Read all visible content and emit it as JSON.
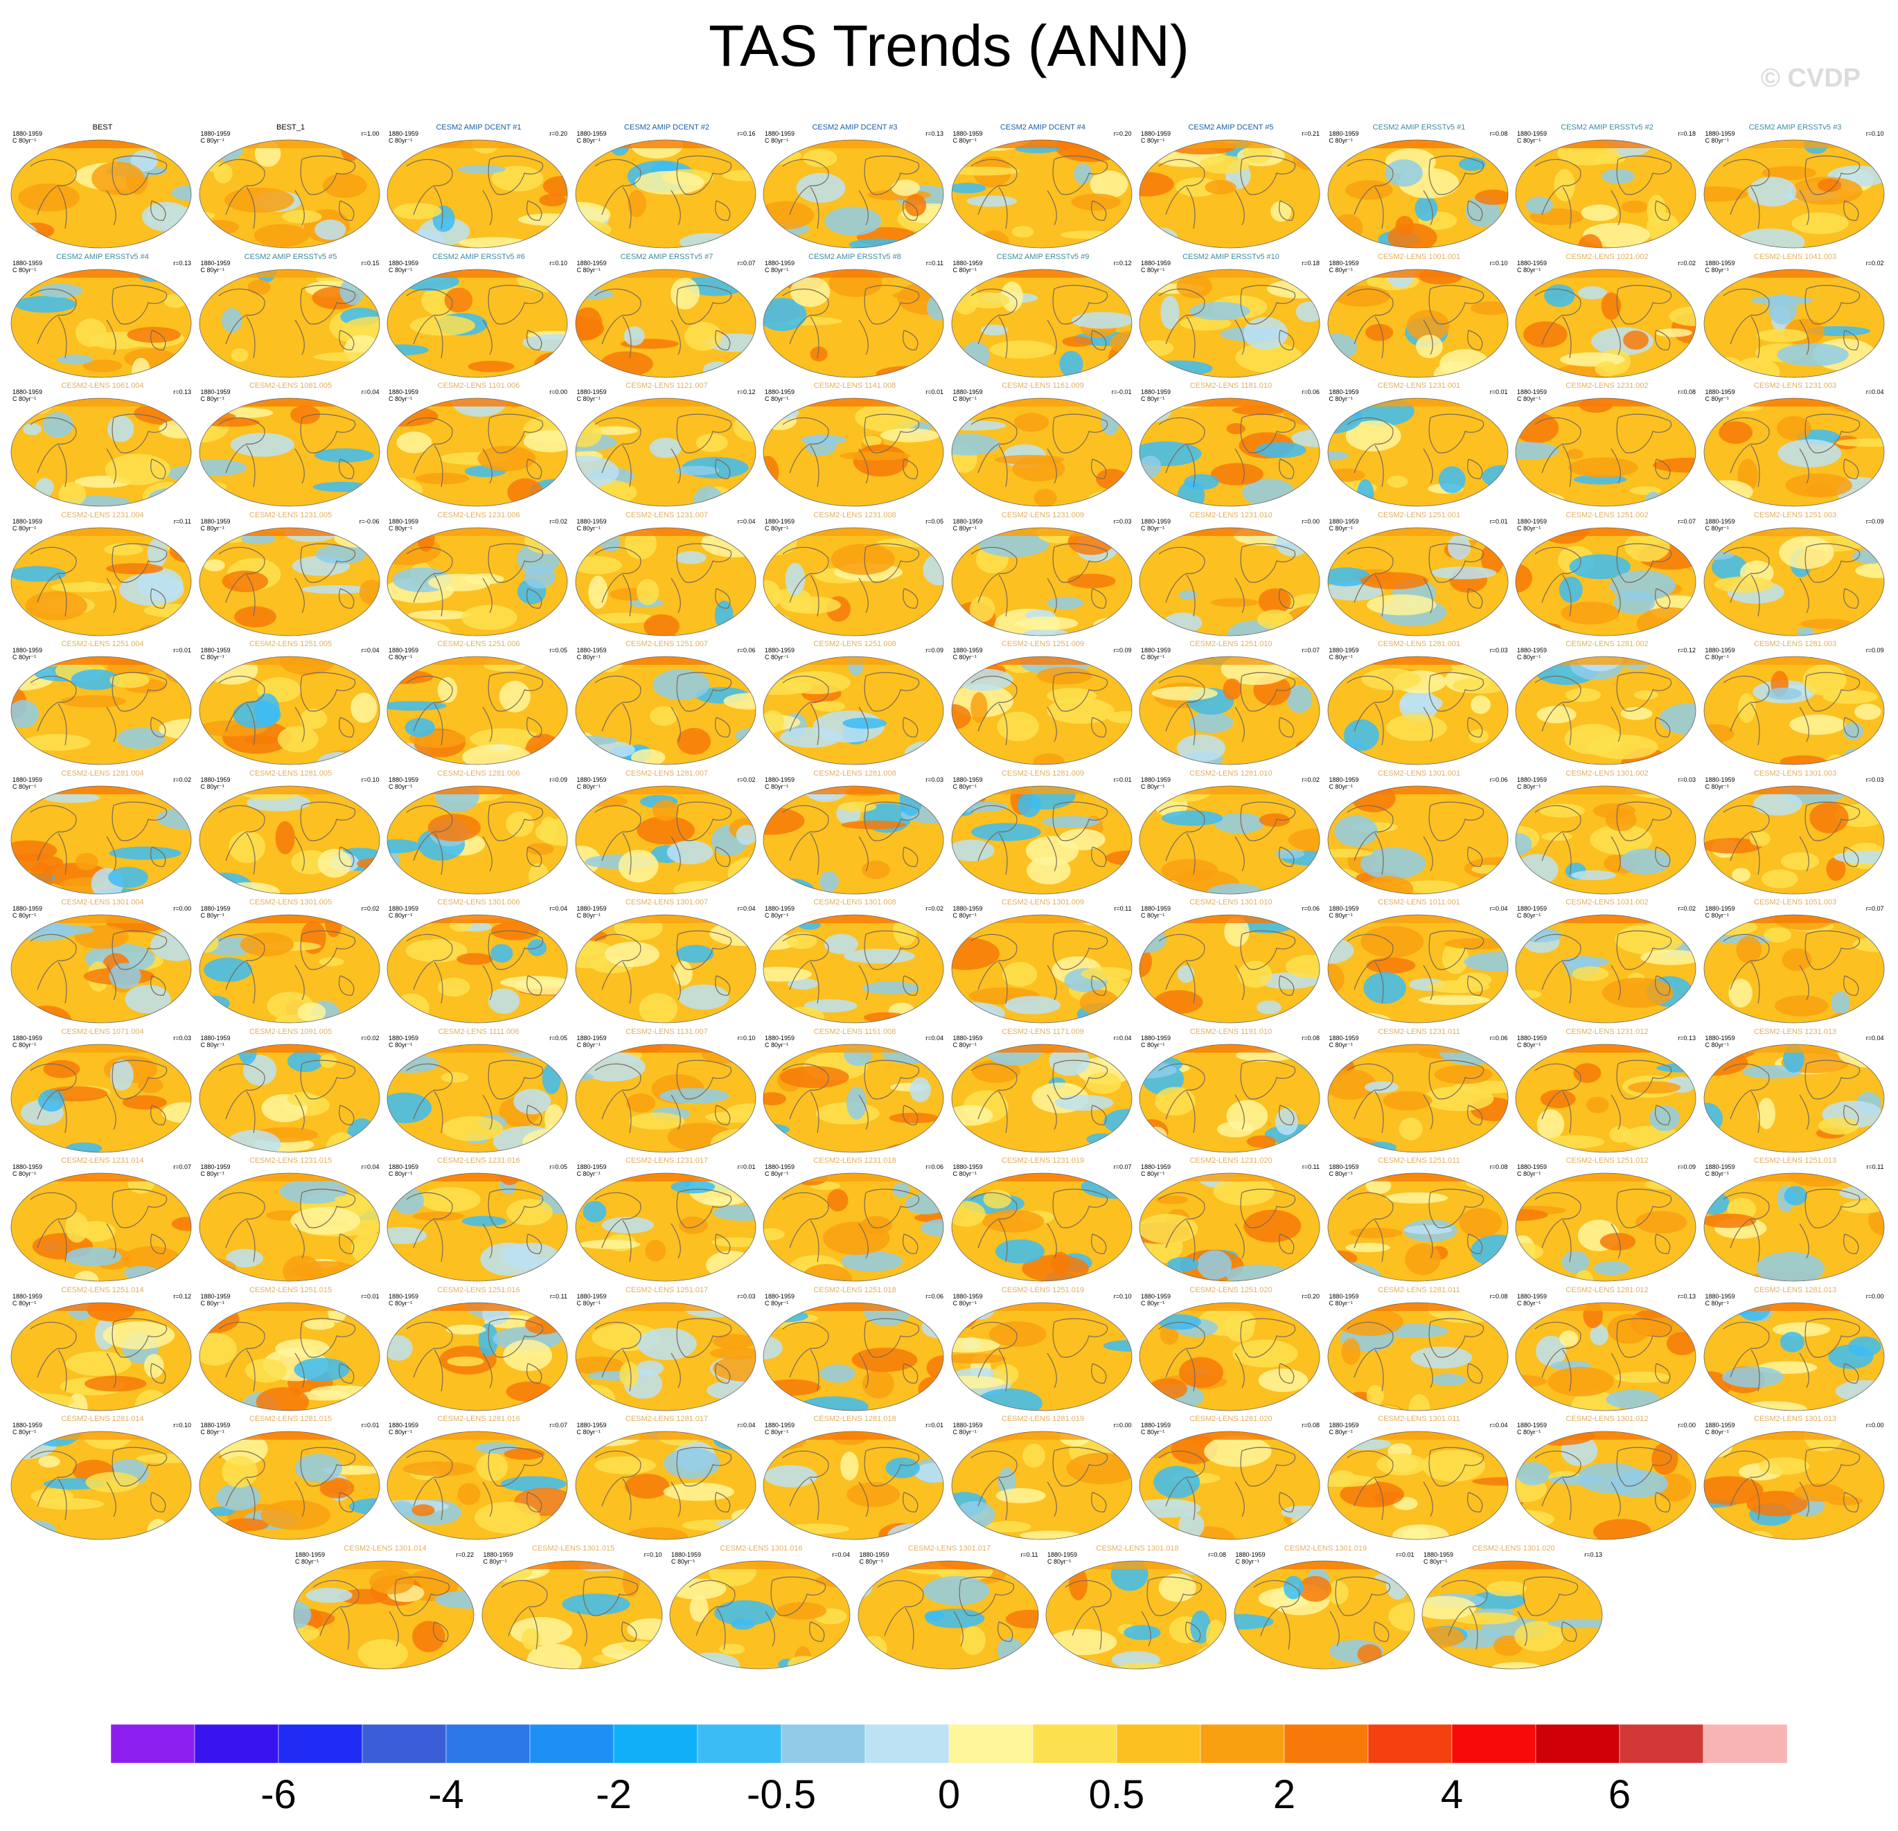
{
  "title": "TAS Trends (ANN)",
  "copyright": "© CVDP",
  "colors": {
    "title_obs": "#000000",
    "title_dcent": "#1a5ea8",
    "title_ersst": "#3c8a9e",
    "title_lens": "#e0b060",
    "land_outline": "#7a6a5a"
  },
  "chart_data": {
    "type": "heatmap",
    "title": "TAS Trends (ANN)",
    "colorbar": {
      "ticks": [
        "-6",
        "-4",
        "-2",
        "-0.5",
        "0",
        "0.5",
        "2",
        "4",
        "6"
      ],
      "colors": [
        "#8c1ef0",
        "#3a14f0",
        "#1e2cf5",
        "#3a5ed8",
        "#2d78e8",
        "#1e90f5",
        "#10b0f8",
        "#3cbcf5",
        "#90cce8",
        "#bce2f4",
        "#fff59a",
        "#fde050",
        "#fcc020",
        "#f9a010",
        "#f77a08",
        "#f54010",
        "#f80a08",
        "#d00008",
        "#d23838",
        "#f8b4b4"
      ]
    },
    "panels": [
      {
        "name": "BEST",
        "period": "1880-1959",
        "units": "C 80yr⁻¹",
        "r": ""
      },
      {
        "name": "BEST_1",
        "period": "1880-1959",
        "units": "C 80yr⁻¹",
        "r": "r=1.00"
      },
      {
        "name": "CESM2 AMIP DCENT #1",
        "period": "1880-1959",
        "units": "C 80yr⁻¹",
        "r": "r=0.20"
      },
      {
        "name": "CESM2 AMIP DCENT #2",
        "period": "1880-1959",
        "units": "C 80yr⁻¹",
        "r": "r=0.16"
      },
      {
        "name": "CESM2 AMIP DCENT #3",
        "period": "1880-1959",
        "units": "C 80yr⁻¹",
        "r": "r=0.13"
      },
      {
        "name": "CESM2 AMIP DCENT #4",
        "period": "1880-1959",
        "units": "C 80yr⁻¹",
        "r": "r=0.20"
      },
      {
        "name": "CESM2 AMIP DCENT #5",
        "period": "1880-1959",
        "units": "C 80yr⁻¹",
        "r": "r=0.21"
      },
      {
        "name": "CESM2 AMIP ERSSTv5 #1",
        "period": "1880-1959",
        "units": "C 80yr⁻¹",
        "r": "r=0.08"
      },
      {
        "name": "CESM2 AMIP ERSSTv5 #2",
        "period": "1880-1959",
        "units": "C 80yr⁻¹",
        "r": "r=0.18"
      },
      {
        "name": "CESM2 AMIP ERSSTv5 #3",
        "period": "1880-1959",
        "units": "C 80yr⁻¹",
        "r": "r=0.10"
      },
      {
        "name": "CESM2 AMIP ERSSTv5 #4",
        "period": "1880-1959",
        "units": "C 80yr⁻¹",
        "r": "r=0.13"
      },
      {
        "name": "CESM2 AMIP ERSSTv5 #5",
        "period": "1880-1959",
        "units": "C 80yr⁻¹",
        "r": "r=0.15"
      },
      {
        "name": "CESM2 AMIP ERSSTv5 #6",
        "period": "1880-1959",
        "units": "C 80yr⁻¹",
        "r": "r=0.10"
      },
      {
        "name": "CESM2 AMIP ERSSTv5 #7",
        "period": "1880-1959",
        "units": "C 80yr⁻¹",
        "r": "r=0.07"
      },
      {
        "name": "CESM2 AMIP ERSSTv5 #8",
        "period": "1880-1959",
        "units": "C 80yr⁻¹",
        "r": "r=0.11"
      },
      {
        "name": "CESM2 AMIP ERSSTv5 #9",
        "period": "1880-1959",
        "units": "C 80yr⁻¹",
        "r": "r=0.12"
      },
      {
        "name": "CESM2 AMIP ERSSTv5 #10",
        "period": "1880-1959",
        "units": "C 80yr⁻¹",
        "r": "r=0.18"
      },
      {
        "name": "CESM2-LENS 1001.001",
        "period": "1880-1959",
        "units": "C 80yr⁻¹",
        "r": "r=0.10"
      },
      {
        "name": "CESM2-LENS 1021.002",
        "period": "1880-1959",
        "units": "C 80yr⁻¹",
        "r": "r=0.02"
      },
      {
        "name": "CESM2-LENS 1041.003",
        "period": "1880-1959",
        "units": "C 80yr⁻¹",
        "r": "r=0.02"
      },
      {
        "name": "CESM2-LENS 1061.004",
        "period": "1880-1959",
        "units": "C 80yr⁻¹",
        "r": "r=0.13"
      },
      {
        "name": "CESM2-LENS 1081.005",
        "period": "1880-1959",
        "units": "C 80yr⁻¹",
        "r": "r=0.04"
      },
      {
        "name": "CESM2-LENS 1101.006",
        "period": "1880-1959",
        "units": "C 80yr⁻¹",
        "r": "r=0.00"
      },
      {
        "name": "CESM2-LENS 1121.007",
        "period": "1880-1959",
        "units": "C 80yr⁻¹",
        "r": "r=0.12"
      },
      {
        "name": "CESM2-LENS 1141.008",
        "period": "1880-1959",
        "units": "C 80yr⁻¹",
        "r": "r=0.01"
      },
      {
        "name": "CESM2-LENS 1161.009",
        "period": "1880-1959",
        "units": "C 80yr⁻¹",
        "r": "r=-0.01"
      },
      {
        "name": "CESM2-LENS 1181.010",
        "period": "1880-1959",
        "units": "C 80yr⁻¹",
        "r": "r=0.06"
      },
      {
        "name": "CESM2-LENS 1231.001",
        "period": "1880-1959",
        "units": "C 80yr⁻¹",
        "r": "r=0.01"
      },
      {
        "name": "CESM2-LENS 1231.002",
        "period": "1880-1959",
        "units": "C 80yr⁻¹",
        "r": "r=0.08"
      },
      {
        "name": "CESM2-LENS 1231.003",
        "period": "1880-1959",
        "units": "C 80yr⁻¹",
        "r": "r=0.04"
      },
      {
        "name": "CESM2-LENS 1231.004",
        "period": "1880-1959",
        "units": "C 80yr⁻¹",
        "r": "r=0.11"
      },
      {
        "name": "CESM2-LENS 1231.005",
        "period": "1880-1959",
        "units": "C 80yr⁻¹",
        "r": "r=-0.06"
      },
      {
        "name": "CESM2-LENS 1231.006",
        "period": "1880-1959",
        "units": "C 80yr⁻¹",
        "r": "r=0.02"
      },
      {
        "name": "CESM2-LENS 1231.007",
        "period": "1880-1959",
        "units": "C 80yr⁻¹",
        "r": "r=0.04"
      },
      {
        "name": "CESM2-LENS 1231.008",
        "period": "1880-1959",
        "units": "C 80yr⁻¹",
        "r": "r=0.05"
      },
      {
        "name": "CESM2-LENS 1231.009",
        "period": "1880-1959",
        "units": "C 80yr⁻¹",
        "r": "r=0.03"
      },
      {
        "name": "CESM2-LENS 1231.010",
        "period": "1880-1959",
        "units": "C 80yr⁻¹",
        "r": "r=0.00"
      },
      {
        "name": "CESM2-LENS 1251.001",
        "period": "1880-1959",
        "units": "C 80yr⁻¹",
        "r": "r=0.01"
      },
      {
        "name": "CESM2-LENS 1251.002",
        "period": "1880-1959",
        "units": "C 80yr⁻¹",
        "r": "r=0.07"
      },
      {
        "name": "CESM2-LENS 1251.003",
        "period": "1880-1959",
        "units": "C 80yr⁻¹",
        "r": "r=0.09"
      },
      {
        "name": "CESM2-LENS 1251.004",
        "period": "1880-1959",
        "units": "C 80yr⁻¹",
        "r": "r=0.01"
      },
      {
        "name": "CESM2-LENS 1251.005",
        "period": "1880-1959",
        "units": "C 80yr⁻¹",
        "r": "r=0.04"
      },
      {
        "name": "CESM2-LENS 1251.006",
        "period": "1880-1959",
        "units": "C 80yr⁻¹",
        "r": "r=0.05"
      },
      {
        "name": "CESM2-LENS 1251.007",
        "period": "1880-1959",
        "units": "C 80yr⁻¹",
        "r": "r=0.06"
      },
      {
        "name": "CESM2-LENS 1251.008",
        "period": "1880-1959",
        "units": "C 80yr⁻¹",
        "r": "r=0.09"
      },
      {
        "name": "CESM2-LENS 1251.009",
        "period": "1880-1959",
        "units": "C 80yr⁻¹",
        "r": "r=0.09"
      },
      {
        "name": "CESM2-LENS 1251.010",
        "period": "1880-1959",
        "units": "C 80yr⁻¹",
        "r": "r=0.07"
      },
      {
        "name": "CESM2-LENS 1281.001",
        "period": "1880-1959",
        "units": "C 80yr⁻¹",
        "r": "r=0.03"
      },
      {
        "name": "CESM2-LENS 1281.002",
        "period": "1880-1959",
        "units": "C 80yr⁻¹",
        "r": "r=0.12"
      },
      {
        "name": "CESM2-LENS 1281.003",
        "period": "1880-1959",
        "units": "C 80yr⁻¹",
        "r": "r=0.09"
      },
      {
        "name": "CESM2-LENS 1281.004",
        "period": "1880-1959",
        "units": "C 80yr⁻¹",
        "r": "r=0.02"
      },
      {
        "name": "CESM2-LENS 1281.005",
        "period": "1880-1959",
        "units": "C 80yr⁻¹",
        "r": "r=0.10"
      },
      {
        "name": "CESM2-LENS 1281.006",
        "period": "1880-1959",
        "units": "C 80yr⁻¹",
        "r": "r=0.09"
      },
      {
        "name": "CESM2-LENS 1281.007",
        "period": "1880-1959",
        "units": "C 80yr⁻¹",
        "r": "r=0.02"
      },
      {
        "name": "CESM2-LENS 1281.008",
        "period": "1880-1959",
        "units": "C 80yr⁻¹",
        "r": "r=0.03"
      },
      {
        "name": "CESM2-LENS 1281.009",
        "period": "1880-1959",
        "units": "C 80yr⁻¹",
        "r": "r=0.01"
      },
      {
        "name": "CESM2-LENS 1281.010",
        "period": "1880-1959",
        "units": "C 80yr⁻¹",
        "r": "r=0.02"
      },
      {
        "name": "CESM2-LENS 1301.001",
        "period": "1880-1959",
        "units": "C 80yr⁻¹",
        "r": "r=0.06"
      },
      {
        "name": "CESM2-LENS 1301.002",
        "period": "1880-1959",
        "units": "C 80yr⁻¹",
        "r": "r=0.03"
      },
      {
        "name": "CESM2-LENS 1301.003",
        "period": "1880-1959",
        "units": "C 80yr⁻¹",
        "r": "r=0.03"
      },
      {
        "name": "CESM2-LENS 1301.004",
        "period": "1880-1959",
        "units": "C 80yr⁻¹",
        "r": "r=0.00"
      },
      {
        "name": "CESM2-LENS 1301.005",
        "period": "1880-1959",
        "units": "C 80yr⁻¹",
        "r": "r=0.02"
      },
      {
        "name": "CESM2-LENS 1301.006",
        "period": "1880-1959",
        "units": "C 80yr⁻¹",
        "r": "r=0.04"
      },
      {
        "name": "CESM2-LENS 1301.007",
        "period": "1880-1959",
        "units": "C 80yr⁻¹",
        "r": "r=0.04"
      },
      {
        "name": "CESM2-LENS 1301.008",
        "period": "1880-1959",
        "units": "C 80yr⁻¹",
        "r": "r=0.02"
      },
      {
        "name": "CESM2-LENS 1301.009",
        "period": "1880-1959",
        "units": "C 80yr⁻¹",
        "r": "r=0.11"
      },
      {
        "name": "CESM2-LENS 1301.010",
        "period": "1880-1959",
        "units": "C 80yr⁻¹",
        "r": "r=0.06"
      },
      {
        "name": "CESM2-LENS 1011.001",
        "period": "1880-1959",
        "units": "C 80yr⁻¹",
        "r": "r=0.04"
      },
      {
        "name": "CESM2-LENS 1031.002",
        "period": "1880-1959",
        "units": "C 80yr⁻¹",
        "r": "r=0.02"
      },
      {
        "name": "CESM2-LENS 1051.003",
        "period": "1880-1959",
        "units": "C 80yr⁻¹",
        "r": "r=0.07"
      },
      {
        "name": "CESM2-LENS 1071.004",
        "period": "1880-1959",
        "units": "C 80yr⁻¹",
        "r": "r=0.03"
      },
      {
        "name": "CESM2-LENS 1091.005",
        "period": "1880-1959",
        "units": "C 80yr⁻¹",
        "r": "r=0.02"
      },
      {
        "name": "CESM2-LENS 1111.006",
        "period": "1880-1959",
        "units": "C 80yr⁻¹",
        "r": "r=0.05"
      },
      {
        "name": "CESM2-LENS 1131.007",
        "period": "1880-1959",
        "units": "C 80yr⁻¹",
        "r": "r=0.10"
      },
      {
        "name": "CESM2-LENS 1151.008",
        "period": "1880-1959",
        "units": "C 80yr⁻¹",
        "r": "r=0.04"
      },
      {
        "name": "CESM2-LENS 1171.009",
        "period": "1880-1959",
        "units": "C 80yr⁻¹",
        "r": "r=0.04"
      },
      {
        "name": "CESM2-LENS 1191.010",
        "period": "1880-1959",
        "units": "C 80yr⁻¹",
        "r": "r=0.08"
      },
      {
        "name": "CESM2-LENS 1231.011",
        "period": "1880-1959",
        "units": "C 80yr⁻¹",
        "r": "r=0.06"
      },
      {
        "name": "CESM2-LENS 1231.012",
        "period": "1880-1959",
        "units": "C 80yr⁻¹",
        "r": "r=0.13"
      },
      {
        "name": "CESM2-LENS 1231.013",
        "period": "1880-1959",
        "units": "C 80yr⁻¹",
        "r": "r=0.04"
      },
      {
        "name": "CESM2-LENS 1231.014",
        "period": "1880-1959",
        "units": "C 80yr⁻¹",
        "r": "r=0.07"
      },
      {
        "name": "CESM2-LENS 1231.015",
        "period": "1880-1959",
        "units": "C 80yr⁻¹",
        "r": "r=0.04"
      },
      {
        "name": "CESM2-LENS 1231.016",
        "period": "1880-1959",
        "units": "C 80yr⁻¹",
        "r": "r=0.05"
      },
      {
        "name": "CESM2-LENS 1231.017",
        "period": "1880-1959",
        "units": "C 80yr⁻¹",
        "r": "r=0.01"
      },
      {
        "name": "CESM2-LENS 1231.018",
        "period": "1880-1959",
        "units": "C 80yr⁻¹",
        "r": "r=0.06"
      },
      {
        "name": "CESM2-LENS 1231.019",
        "period": "1880-1959",
        "units": "C 80yr⁻¹",
        "r": "r=0.07"
      },
      {
        "name": "CESM2-LENS 1231.020",
        "period": "1880-1959",
        "units": "C 80yr⁻¹",
        "r": "r=0.11"
      },
      {
        "name": "CESM2-LENS 1251.011",
        "period": "1880-1959",
        "units": "C 80yr⁻¹",
        "r": "r=0.08"
      },
      {
        "name": "CESM2-LENS 1251.012",
        "period": "1880-1959",
        "units": "C 80yr⁻¹",
        "r": "r=0.09"
      },
      {
        "name": "CESM2-LENS 1251.013",
        "period": "1880-1959",
        "units": "C 80yr⁻¹",
        "r": "r=0.11"
      },
      {
        "name": "CESM2-LENS 1251.014",
        "period": "1880-1959",
        "units": "C 80yr⁻¹",
        "r": "r=0.12"
      },
      {
        "name": "CESM2-LENS 1251.015",
        "period": "1880-1959",
        "units": "C 80yr⁻¹",
        "r": "r=0.01"
      },
      {
        "name": "CESM2-LENS 1251.016",
        "period": "1880-1959",
        "units": "C 80yr⁻¹",
        "r": "r=0.11"
      },
      {
        "name": "CESM2-LENS 1251.017",
        "period": "1880-1959",
        "units": "C 80yr⁻¹",
        "r": "r=0.03"
      },
      {
        "name": "CESM2-LENS 1251.018",
        "period": "1880-1959",
        "units": "C 80yr⁻¹",
        "r": "r=0.06"
      },
      {
        "name": "CESM2-LENS 1251.019",
        "period": "1880-1959",
        "units": "C 80yr⁻¹",
        "r": "r=0.10"
      },
      {
        "name": "CESM2-LENS 1251.020",
        "period": "1880-1959",
        "units": "C 80yr⁻¹",
        "r": "r=0.20"
      },
      {
        "name": "CESM2-LENS 1281.011",
        "period": "1880-1959",
        "units": "C 80yr⁻¹",
        "r": "r=0.08"
      },
      {
        "name": "CESM2-LENS 1281.012",
        "period": "1880-1959",
        "units": "C 80yr⁻¹",
        "r": "r=0.13"
      },
      {
        "name": "CESM2-LENS 1281.013",
        "period": "1880-1959",
        "units": "C 80yr⁻¹",
        "r": "r=0.00"
      },
      {
        "name": "CESM2-LENS 1281.014",
        "period": "1880-1959",
        "units": "C 80yr⁻¹",
        "r": "r=0.10"
      },
      {
        "name": "CESM2-LENS 1281.015",
        "period": "1880-1959",
        "units": "C 80yr⁻¹",
        "r": "r=0.01"
      },
      {
        "name": "CESM2-LENS 1281.016",
        "period": "1880-1959",
        "units": "C 80yr⁻¹",
        "r": "r=0.07"
      },
      {
        "name": "CESM2-LENS 1281.017",
        "period": "1880-1959",
        "units": "C 80yr⁻¹",
        "r": "r=0.04"
      },
      {
        "name": "CESM2-LENS 1281.018",
        "period": "1880-1959",
        "units": "C 80yr⁻¹",
        "r": "r=0.01"
      },
      {
        "name": "CESM2-LENS 1281.019",
        "period": "1880-1959",
        "units": "C 80yr⁻¹",
        "r": "r=0.00"
      },
      {
        "name": "CESM2-LENS 1281.020",
        "period": "1880-1959",
        "units": "C 80yr⁻¹",
        "r": "r=0.08"
      },
      {
        "name": "CESM2-LENS 1301.011",
        "period": "1880-1959",
        "units": "C 80yr⁻¹",
        "r": "r=0.04"
      },
      {
        "name": "CESM2-LENS 1301.012",
        "period": "1880-1959",
        "units": "C 80yr⁻¹",
        "r": "r=0.00"
      },
      {
        "name": "CESM2-LENS 1301.013",
        "period": "1880-1959",
        "units": "C 80yr⁻¹",
        "r": "r=0.00"
      },
      {
        "name": "CESM2-LENS 1301.014",
        "period": "1880-1959",
        "units": "C 80yr⁻¹",
        "r": "r=0.22"
      },
      {
        "name": "CESM2-LENS 1301.015",
        "period": "1880-1959",
        "units": "C 80yr⁻¹",
        "r": "r=0.10"
      },
      {
        "name": "CESM2-LENS 1301.016",
        "period": "1880-1959",
        "units": "C 80yr⁻¹",
        "r": "r=0.04"
      },
      {
        "name": "CESM2-LENS 1301.017",
        "period": "1880-1959",
        "units": "C 80yr⁻¹",
        "r": "r=0.11"
      },
      {
        "name": "CESM2-LENS 1301.018",
        "period": "1880-1959",
        "units": "C 80yr⁻¹",
        "r": "r=0.08"
      },
      {
        "name": "CESM2-LENS 1301.019",
        "period": "1880-1959",
        "units": "C 80yr⁻¹",
        "r": "r=0.01"
      },
      {
        "name": "CESM2-LENS 1301.020",
        "period": "1880-1959",
        "units": "C 80yr⁻¹",
        "r": "r=0.13"
      }
    ]
  }
}
